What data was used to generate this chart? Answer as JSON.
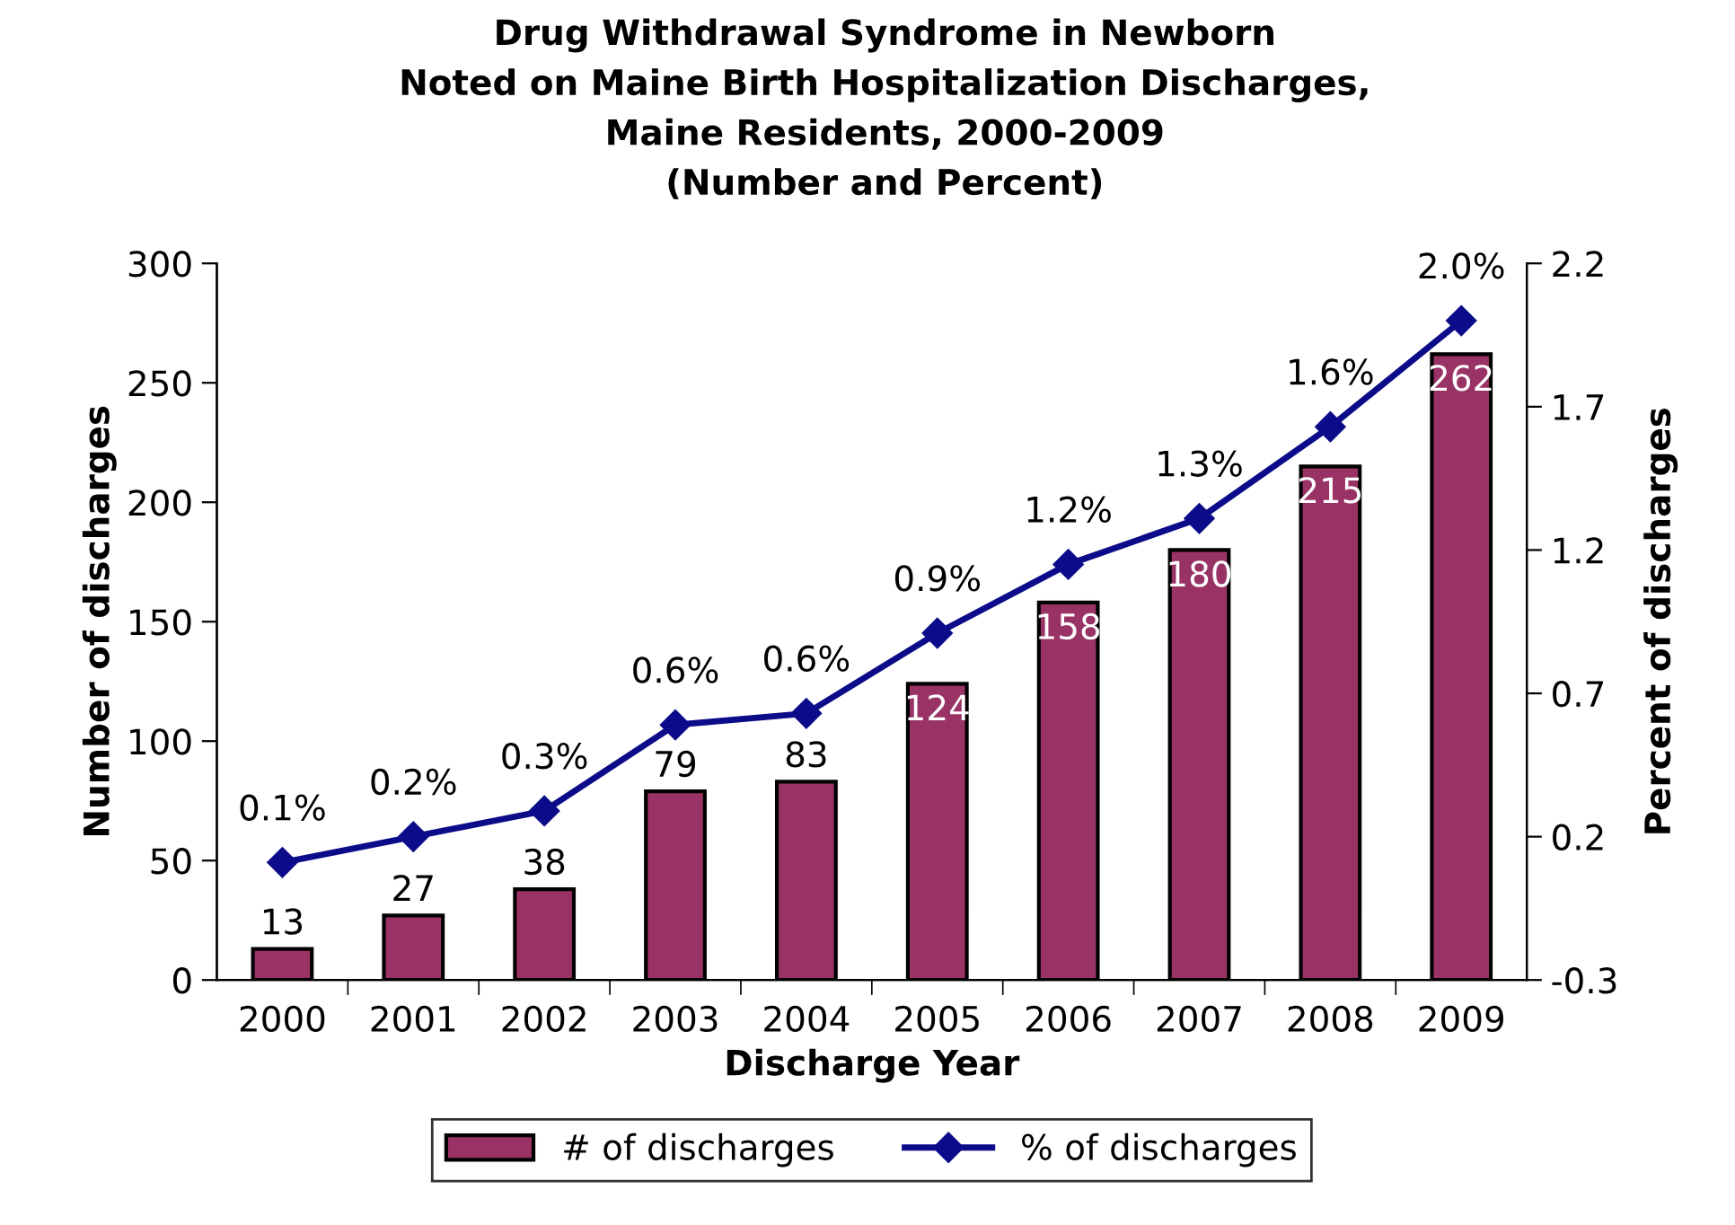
{
  "chart_data": {
    "type": "bar",
    "title": "Drug Withdrawal Syndrome in Newborn\nNoted on Maine Birth Hospitalization Discharges,\nMaine Residents, 2000-2009\n(Number and Percent)",
    "xlabel": "Discharge Year",
    "ylabel": "Number of discharges",
    "y2label": "Percent of discharges",
    "categories": [
      "2000",
      "2001",
      "2002",
      "2003",
      "2004",
      "2005",
      "2006",
      "2007",
      "2008",
      "2009"
    ],
    "series": [
      {
        "name": "# of discharges",
        "color": "#993366",
        "values": [
          13,
          27,
          38,
          79,
          83,
          124,
          158,
          180,
          215,
          262
        ],
        "value_labels": [
          "13",
          "27",
          "38",
          "79",
          "83",
          "124",
          "158",
          "180",
          "215",
          "262"
        ]
      },
      {
        "name": "% of discharges",
        "type": "line",
        "axis": "y2",
        "color": "#0c0c8a",
        "marker": "diamond",
        "values": [
          0.11,
          0.2,
          0.29,
          0.59,
          0.63,
          0.91,
          1.15,
          1.31,
          1.63,
          2.0
        ],
        "value_labels": [
          "0.1%",
          "0.2%",
          "0.3%",
          "0.6%",
          "0.6%",
          "0.9%",
          "1.2%",
          "1.3%",
          "1.6%",
          "2.0%"
        ]
      }
    ],
    "ylim": [
      0,
      300
    ],
    "yticks": [
      0,
      50,
      100,
      150,
      200,
      250,
      300
    ],
    "y2lim": [
      -0.3,
      2.2
    ],
    "y2ticks": [
      -0.3,
      0.2,
      0.7,
      1.2,
      1.7,
      2.2
    ],
    "legend": "bottom",
    "grid": false
  }
}
